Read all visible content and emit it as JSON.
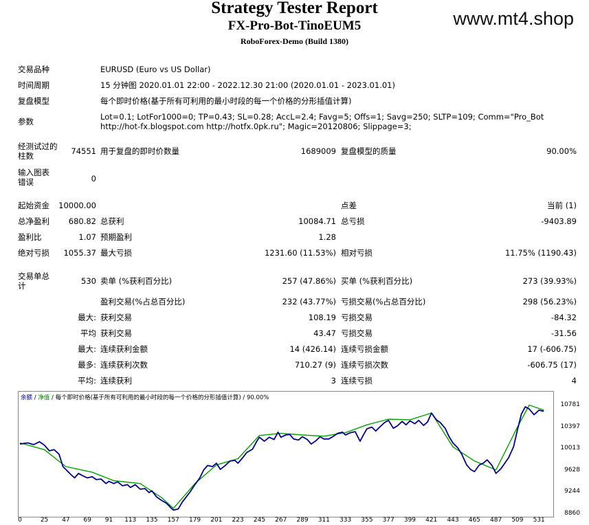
{
  "header": {
    "title": "Strategy Tester Report",
    "subtitle": "FX-Pro-Bot-TinoEUM5",
    "build": "RoboForex-Demo (Build 1380)",
    "watermark": "www.mt4.shop"
  },
  "info": {
    "symbol_label": "交易品种",
    "symbol_value": "EURUSD (Euro vs US Dollar)",
    "period_label": "时间周期",
    "period_value": "15 分钟图 2020.01.01 22:00 - 2022.12.30 21:00 (2020.01.01 - 2023.01.01)",
    "model_label": "复盘模型",
    "model_value": "每个即时价格(基于所有可利用的最小时段的每一个价格的分形插值计算)",
    "params_label": "参数",
    "params_value": "Lot=0.1; LotFor1000=0; TP=0.43; SL=0.28; AccL=2.4; Favg=5; Offs=1; Savg=250; SLTP=109; Comm=\"Pro_Bot http://hot-fx.blogspot.com http://hotfx.0pk.ru\"; Magic=20120806; Slippage=3;"
  },
  "stats": {
    "bars_label": "经测试过的柱数",
    "bars_value": "74551",
    "ticks_label": "用于复盘的即时价数量",
    "ticks_value": "1689009",
    "quality_label": "复盘模型的质量",
    "quality_value": "90.00%",
    "errors_label": "输入图表错误",
    "errors_value": "0",
    "deposit_label": "起始资金",
    "deposit_value": "10000.00",
    "spread_label": "点差",
    "spread_value": "当前 (1)",
    "net_label": "总净盈利",
    "net_value": "680.82",
    "gross_profit_label": "总获利",
    "gross_profit_value": "10084.71",
    "gross_loss_label": "总亏损",
    "gross_loss_value": "-9403.89",
    "pf_label": "盈利比",
    "pf_value": "1.07",
    "expected_label": "预期盈利",
    "expected_value": "1.28",
    "abs_dd_label": "绝对亏损",
    "abs_dd_value": "1055.37",
    "max_dd_label": "最大亏损",
    "max_dd_value": "1231.60 (11.53%)",
    "rel_dd_label": "相对亏损",
    "rel_dd_value": "11.75% (1190.43)",
    "trades_label": "交易单总计",
    "trades_value": "530",
    "short_label": "卖单 (%获利百分比)",
    "short_value": "257 (47.86%)",
    "long_label": "买单 (%获利百分比)",
    "long_value": "273 (39.93%)",
    "win_trades_label": "盈利交易(%占总百分比)",
    "win_trades_value": "232 (43.77%)",
    "loss_trades_label": "亏损交易(%占总百分比)",
    "loss_trades_value": "298 (56.23%)",
    "largest_label": "最大:",
    "largest_win_label": "获利交易",
    "largest_win_value": "108.19",
    "largest_loss_label": "亏损交易",
    "largest_loss_value": "-84.32",
    "avg_label": "平均",
    "avg_win_label": "获利交易",
    "avg_win_value": "43.47",
    "avg_loss_label": "亏损交易",
    "avg_loss_value": "-31.56",
    "max_cons_label": "最大:",
    "max_cons_win_label": "连续获利金额",
    "max_cons_win_value": "14 (426.14)",
    "max_cons_loss_label": "连续亏损金额",
    "max_cons_loss_value": "17 (-606.75)",
    "maximal_label": "最多:",
    "maximal_win_label": "连续获利次数",
    "maximal_win_value": "710.27 (9)",
    "maximal_loss_label": "连续亏损次数",
    "maximal_loss_value": "-606.75 (17)",
    "avg_cons_label": "平均:",
    "avg_cons_win_label": "连续获利",
    "avg_cons_win_value": "3",
    "avg_cons_loss_label": "连续亏损",
    "avg_cons_loss_value": "4"
  },
  "chart_data": {
    "type": "line",
    "legend_balance": "余额",
    "legend_sep1": " / ",
    "legend_equity": "净值",
    "legend_rest": " / 每个即时价格(基于所有可利用的最小时段的每一个价格的分形插值计算) / 90.00%",
    "xlim": [
      0,
      540
    ],
    "ylim": [
      8860,
      10930
    ],
    "y_ticks": [
      "10781",
      "10397",
      "10013",
      "9628",
      "9244",
      "8860"
    ],
    "x_ticks": [
      "0",
      "25",
      "47",
      "69",
      "91",
      "113",
      "135",
      "157",
      "179",
      "201",
      "223",
      "245",
      "267",
      "289",
      "311",
      "333",
      "355",
      "377",
      "399",
      "421",
      "443",
      "465",
      "487",
      "509",
      "531"
    ],
    "x_tick_values": [
      0,
      25,
      47,
      69,
      91,
      113,
      135,
      157,
      179,
      201,
      223,
      245,
      267,
      289,
      311,
      333,
      355,
      377,
      399,
      421,
      443,
      465,
      487,
      509,
      531
    ],
    "colors": {
      "balance": "#00008b",
      "equity": "#00a000"
    },
    "series": [
      {
        "name": "余额",
        "x": [
          0,
          8,
          14,
          20,
          25,
          30,
          35,
          40,
          44,
          47,
          52,
          56,
          60,
          64,
          69,
          74,
          78,
          83,
          88,
          91,
          96,
          100,
          105,
          110,
          113,
          118,
          123,
          128,
          132,
          135,
          140,
          145,
          150,
          155,
          157,
          162,
          166,
          170,
          174,
          179,
          184,
          188,
          192,
          197,
          201,
          205,
          210,
          215,
          220,
          223,
          228,
          232,
          238,
          242,
          245,
          250,
          255,
          260,
          264,
          267,
          272,
          276,
          280,
          285,
          289,
          294,
          298,
          303,
          307,
          311,
          316,
          320,
          325,
          330,
          333,
          338,
          343,
          348,
          352,
          355,
          360,
          364,
          368,
          373,
          377,
          382,
          386,
          391,
          395,
          399,
          404,
          408,
          413,
          417,
          421,
          426,
          430,
          435,
          439,
          443,
          448,
          452,
          457,
          461,
          465,
          470,
          474,
          478,
          483,
          487,
          492,
          496,
          500,
          505,
          509,
          513,
          517,
          521,
          526,
          531,
          536
        ],
        "y": [
          10100,
          10120,
          10090,
          10140,
          10080,
          9980,
          10000,
          9920,
          9700,
          9650,
          9560,
          9500,
          9580,
          9540,
          9500,
          9520,
          9470,
          9480,
          9400,
          9440,
          9400,
          9430,
          9360,
          9380,
          9330,
          9380,
          9300,
          9310,
          9240,
          9270,
          9160,
          9100,
          9050,
          8960,
          8930,
          8950,
          9070,
          9160,
          9250,
          9380,
          9500,
          9640,
          9720,
          9700,
          9760,
          9650,
          9720,
          9800,
          9810,
          9760,
          9860,
          9950,
          10010,
          10140,
          10220,
          10150,
          10220,
          10180,
          10310,
          10220,
          10260,
          10270,
          10190,
          10170,
          10230,
          10180,
          10100,
          10160,
          10230,
          10190,
          10190,
          10230,
          10290,
          10310,
          10260,
          10300,
          10320,
          10150,
          10280,
          10370,
          10400,
          10330,
          10400,
          10480,
          10520,
          10380,
          10420,
          10500,
          10440,
          10510,
          10460,
          10520,
          10430,
          10490,
          10650,
          10530,
          10480,
          10380,
          10230,
          10120,
          10030,
          9920,
          9730,
          9650,
          9610,
          9730,
          9760,
          9820,
          9720,
          9580,
          9660,
          9760,
          9860,
          10050,
          10350,
          10630,
          10760,
          10720,
          10620,
          10700,
          10680
        ]
      },
      {
        "name": "净值",
        "x": [
          0,
          25,
          47,
          74,
          96,
          123,
          145,
          157,
          179,
          201,
          223,
          245,
          267,
          289,
          311,
          333,
          355,
          377,
          399,
          421,
          443,
          465,
          487,
          509,
          521,
          536
        ],
        "y": [
          10120,
          10000,
          9700,
          9600,
          9450,
          9400,
          9150,
          8960,
          9400,
          9730,
          9840,
          10250,
          10290,
          10260,
          10240,
          10300,
          10440,
          10540,
          10530,
          10650,
          10050,
          9800,
          9640,
          10400,
          10790,
          10700
        ]
      }
    ]
  }
}
